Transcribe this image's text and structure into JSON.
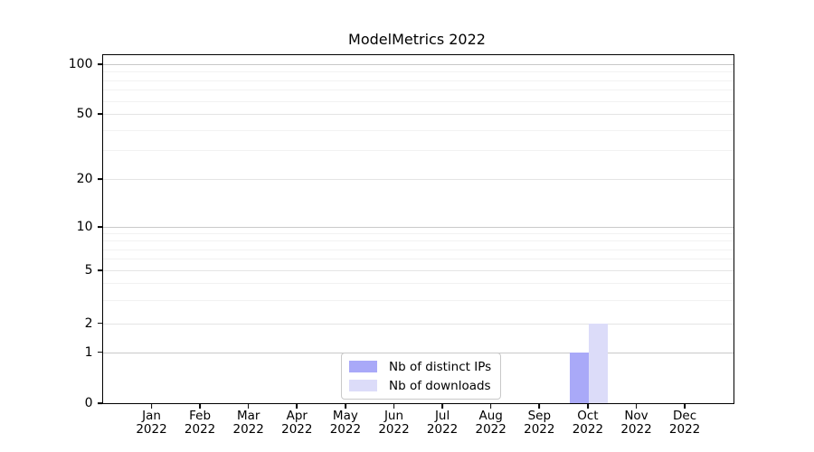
{
  "chart_data": {
    "type": "bar",
    "title": "ModelMetrics 2022",
    "x": [
      "Jan 2022",
      "Feb 2022",
      "Mar 2022",
      "Apr 2022",
      "May 2022",
      "Jun 2022",
      "Jul 2022",
      "Aug 2022",
      "Sep 2022",
      "Oct 2022",
      "Nov 2022",
      "Dec 2022"
    ],
    "x_tick_top": [
      "Jan",
      "Feb",
      "Mar",
      "Apr",
      "May",
      "Jun",
      "Jul",
      "Aug",
      "Sep",
      "Oct",
      "Nov",
      "Dec"
    ],
    "x_tick_bottom": "2022",
    "series": [
      {
        "name": "Nb of distinct IPs",
        "color": "#a9a9f8",
        "values": [
          0,
          0,
          0,
          0,
          0,
          0,
          0,
          0,
          0,
          1,
          0,
          0
        ]
      },
      {
        "name": "Nb of downloads",
        "color": "#dcdcf9",
        "values": [
          0,
          0,
          0,
          0,
          0,
          0,
          0,
          0,
          0,
          2,
          0,
          0
        ]
      }
    ],
    "y_ticks": [
      0,
      1,
      2,
      5,
      10,
      20,
      50,
      100
    ],
    "y_minor_gridlines": [
      3,
      4,
      6,
      7,
      8,
      9,
      30,
      40,
      60,
      70,
      80,
      90
    ],
    "y_scale": "symlog",
    "ylim": [
      0,
      115
    ],
    "grid": true,
    "legend_position": "lower center"
  },
  "colors": {
    "grid_major": "#c9c9c9",
    "grid_mid": "#e4e4e4",
    "grid_minor": "#f2f2f2",
    "spine": "#000000",
    "text": "#000000",
    "background": "#ffffff"
  }
}
